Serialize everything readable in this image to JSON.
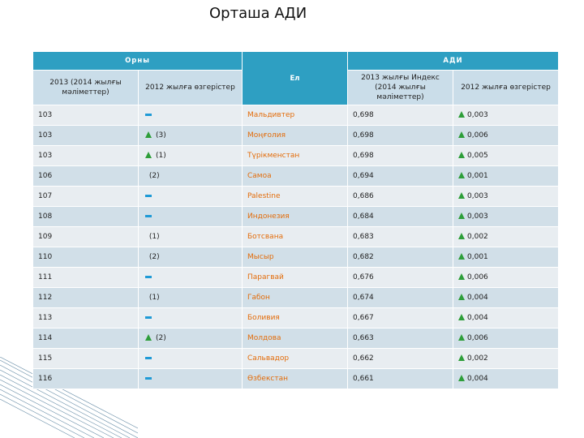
{
  "header": {
    "title": "Орташа АДИ"
  },
  "table": {
    "headers": {
      "rank": "Орны",
      "country": "Ел",
      "hdi": "АДИ",
      "rank_2013": "2013 (2014 жылғы мәліметтер)",
      "rank_change": "2012 жылға өзгерістер",
      "index_2013": "2013 жылғы Индекс (2014 жылғы мәліметтер)",
      "index_change": "2012 жылға өзгерістер"
    },
    "rows": [
      {
        "rank": "103",
        "trend": "same",
        "rank_change": null,
        "country": "Мальдивтер",
        "index": "0,698",
        "index_change": "0,003"
      },
      {
        "rank": "103",
        "trend": "up",
        "rank_change": "(3)",
        "country": "Моңғолия",
        "index": "0,698",
        "index_change": "0,006"
      },
      {
        "rank": "103",
        "trend": "up",
        "rank_change": "(1)",
        "country": "Түрікменстан",
        "index": "0,698",
        "index_change": "0,005"
      },
      {
        "rank": "106",
        "trend": "none",
        "rank_change": "(2)",
        "country": "Самоа",
        "index": "0,694",
        "index_change": "0,001"
      },
      {
        "rank": "107",
        "trend": "same",
        "rank_change": null,
        "country": "Palestine",
        "index": "0,686",
        "index_change": "0,003"
      },
      {
        "rank": "108",
        "trend": "same",
        "rank_change": null,
        "country": "Индонезия",
        "index": "0,684",
        "index_change": "0,003"
      },
      {
        "rank": "109",
        "trend": "none",
        "rank_change": "(1)",
        "country": "Ботсвана",
        "index": "0,683",
        "index_change": "0,002"
      },
      {
        "rank": "110",
        "trend": "none",
        "rank_change": "(2)",
        "country": "Мысыр",
        "index": "0,682",
        "index_change": "0,001"
      },
      {
        "rank": "111",
        "trend": "same",
        "rank_change": null,
        "country": "Парагвай",
        "index": "0,676",
        "index_change": "0,006"
      },
      {
        "rank": "112",
        "trend": "none",
        "rank_change": "(1)",
        "country": "Габон",
        "index": "0,674",
        "index_change": "0,004"
      },
      {
        "rank": "113",
        "trend": "same",
        "rank_change": null,
        "country": "Боливия",
        "index": "0,667",
        "index_change": "0,004"
      },
      {
        "rank": "114",
        "trend": "up",
        "rank_change": "(2)",
        "country": "Молдова",
        "index": "0,663",
        "index_change": "0,006"
      },
      {
        "rank": "115",
        "trend": "same",
        "rank_change": null,
        "country": "Сальвадор",
        "index": "0,662",
        "index_change": "0,002"
      },
      {
        "rank": "116",
        "trend": "same",
        "rank_change": null,
        "country": "Өзбекстан",
        "index": "0,661",
        "index_change": "0,004"
      }
    ]
  }
}
